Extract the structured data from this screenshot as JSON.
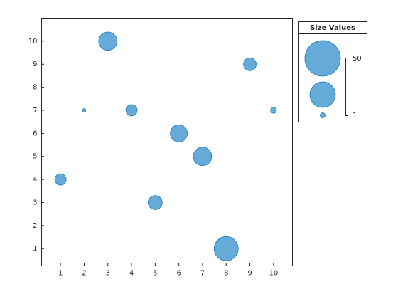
{
  "chart_data": {
    "type": "bubble",
    "x": [
      1,
      2,
      3,
      4,
      5,
      6,
      7,
      8,
      9,
      10
    ],
    "values": [
      4,
      7,
      10,
      7,
      3,
      6,
      5,
      1,
      9,
      7
    ],
    "sizes": [
      11,
      1,
      29,
      11,
      17,
      25,
      29,
      50,
      14,
      3
    ],
    "color": "#66aad8",
    "edge_color": "#0072bd",
    "xlim": [
      0.2,
      10.8
    ],
    "xticks": [
      1,
      2,
      3,
      4,
      5,
      6,
      7,
      8,
      9,
      10
    ],
    "ylim": [
      0.25,
      11
    ],
    "yticks": [
      1,
      2,
      3,
      4,
      5,
      6,
      7,
      8,
      9,
      10
    ],
    "bubble_legend": {
      "title": "Size Values",
      "limits": [
        1,
        50
      ]
    }
  }
}
